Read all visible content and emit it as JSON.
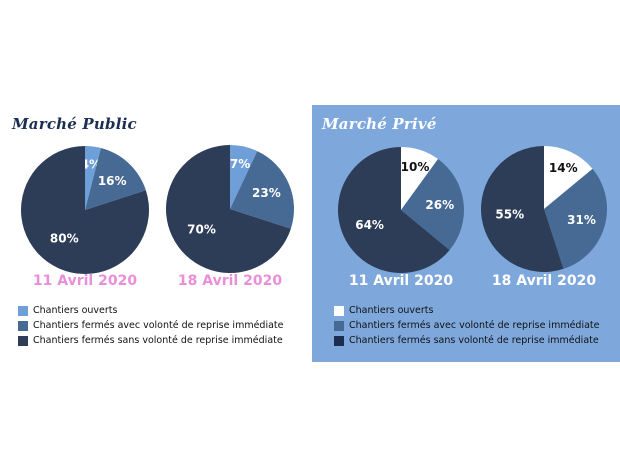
{
  "colors": {
    "prive_background": "#7ea8dc",
    "date_public": "#e98fd9",
    "date_prive": "#ffffff",
    "slice_ouverts_public": "#6f9fd8",
    "slice_ouverts_prive": "#ffffff",
    "slice_reprise": "#466a94",
    "slice_sans_reprise": "#2d3d57",
    "legend_sans_prive": "#1c2d52"
  },
  "panels": [
    {
      "title": "Marché Public",
      "legend": [
        "Chantiers ouverts",
        "Chantiers fermés avec volonté de reprise immédiate",
        "Chantiers fermés sans volonté de reprise immédiate"
      ]
    },
    {
      "title": "Marché Privé",
      "legend": [
        "Chantiers ouverts",
        "Chantiers fermés avec volonté de reprise immédiate",
        "Chantiers fermés sans volonté de reprise immédiate"
      ]
    }
  ],
  "chart_data": [
    {
      "type": "pie",
      "panel": "Marché Public",
      "title": "11 Avril 2020",
      "labels": [
        "Chantiers ouverts",
        "Chantiers fermés avec volonté de reprise immédiate",
        "Chantiers fermés sans volonté de reprise immédiate"
      ],
      "values": [
        4,
        16,
        80
      ],
      "value_labels": [
        "4%",
        "16%",
        "80%"
      ]
    },
    {
      "type": "pie",
      "panel": "Marché Public",
      "title": "18 Avril 2020",
      "labels": [
        "Chantiers ouverts",
        "Chantiers fermés avec volonté de reprise immédiate",
        "Chantiers fermés sans volonté de reprise immédiate"
      ],
      "values": [
        7,
        23,
        70
      ],
      "value_labels": [
        "7%",
        "23%",
        "70%"
      ]
    },
    {
      "type": "pie",
      "panel": "Marché Privé",
      "title": "11 Avril 2020",
      "labels": [
        "Chantiers ouverts",
        "Chantiers fermés avec volonté de reprise immédiate",
        "Chantiers fermés sans volonté de reprise immédiate"
      ],
      "values": [
        10,
        26,
        64
      ],
      "value_labels": [
        "10%",
        "26%",
        "64%"
      ]
    },
    {
      "type": "pie",
      "panel": "Marché Privé",
      "title": "18 Avril 2020",
      "labels": [
        "Chantiers ouverts",
        "Chantiers fermés avec volonté de reprise immédiate",
        "Chantiers fermés sans volonté de reprise immédiate"
      ],
      "values": [
        14,
        31,
        55
      ],
      "value_labels": [
        "14%",
        "31%",
        "55%"
      ]
    }
  ]
}
